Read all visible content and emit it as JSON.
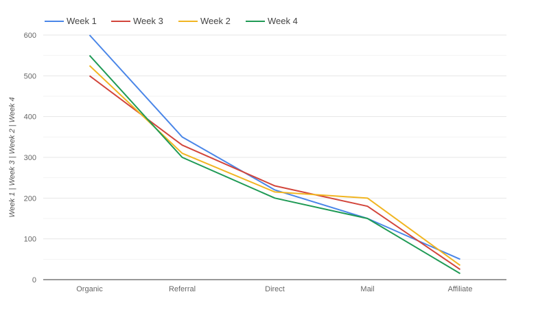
{
  "chart_data": {
    "type": "line",
    "title": "",
    "xlabel": "",
    "ylabel": "Week 1 | Week 3 | Week 2 | Week 4",
    "categories": [
      "Organic",
      "Referral",
      "Direct",
      "Mail",
      "Affiliate"
    ],
    "ylim": [
      0,
      600
    ],
    "yticks": [
      0,
      100,
      200,
      300,
      400,
      500,
      600
    ],
    "grid": true,
    "legend_position": "top",
    "series": [
      {
        "name": "Week 1",
        "color": "#4a86e8",
        "values": [
          600,
          350,
          220,
          150,
          50
        ]
      },
      {
        "name": "Week 3",
        "color": "#d2453b",
        "values": [
          500,
          330,
          230,
          180,
          25
        ]
      },
      {
        "name": "Week 2",
        "color": "#f1b521",
        "values": [
          525,
          310,
          215,
          200,
          35
        ]
      },
      {
        "name": "Week 4",
        "color": "#1f9a55",
        "values": [
          550,
          300,
          200,
          150,
          15
        ]
      }
    ]
  },
  "legend": {
    "items": [
      {
        "label": "Week 1",
        "color": "#4a86e8"
      },
      {
        "label": "Week 3",
        "color": "#d2453b"
      },
      {
        "label": "Week 2",
        "color": "#f1b521"
      },
      {
        "label": "Week 4",
        "color": "#1f9a55"
      }
    ]
  }
}
